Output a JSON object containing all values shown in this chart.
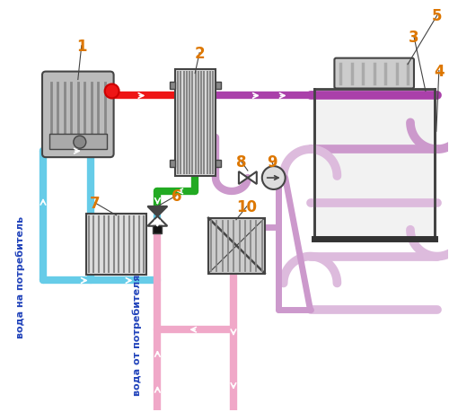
{
  "bg": "#ffffff",
  "red": "#ee1515",
  "purple_dark": "#aa40aa",
  "purple_light": "#cc99cc",
  "purple_lighter": "#ddbbdd",
  "green": "#22aa22",
  "blue": "#66cce8",
  "pink": "#f0a8c8",
  "gray_dark": "#444444",
  "gray_mid": "#888888",
  "gray_light": "#dddddd",
  "gray_comp": "#bbbbbb",
  "orange": "#dd7700",
  "blue_text": "#2244bb",
  "lw_pipe": 6,
  "lw_coil": 7,
  "fs_label": 12,
  "fs_note": 8,
  "voda_na": "вода на потребитель",
  "voda_ot": "вода от потребителя"
}
